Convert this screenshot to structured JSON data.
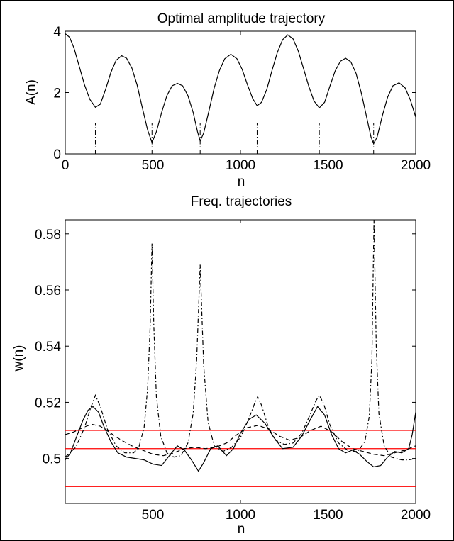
{
  "chart_data": [
    {
      "type": "line",
      "title": "Optimal  amplitude trajectory",
      "xlabel": "n",
      "ylabel": "A(n)",
      "xlim": [
        0,
        2000
      ],
      "ylim": [
        0,
        4
      ],
      "x_ticks": [
        "0",
        "500",
        "1000",
        "1500",
        "2000"
      ],
      "y_ticks": [
        "0",
        "2",
        "4"
      ],
      "series": [
        {
          "style": "solid",
          "color": "#000000",
          "points": [
            [
              0,
              3.92
            ],
            [
              25,
              3.8
            ],
            [
              50,
              3.45
            ],
            [
              80,
              2.85
            ],
            [
              110,
              2.25
            ],
            [
              140,
              1.78
            ],
            [
              172,
              1.52
            ],
            [
              200,
              1.62
            ],
            [
              230,
              2.1
            ],
            [
              260,
              2.65
            ],
            [
              290,
              3.05
            ],
            [
              322,
              3.2
            ],
            [
              350,
              3.12
            ],
            [
              380,
              2.8
            ],
            [
              410,
              2.25
            ],
            [
              440,
              1.5
            ],
            [
              470,
              0.78
            ],
            [
              495,
              0.37
            ],
            [
              520,
              0.72
            ],
            [
              550,
              1.35
            ],
            [
              580,
              1.9
            ],
            [
              610,
              2.22
            ],
            [
              640,
              2.3
            ],
            [
              670,
              2.22
            ],
            [
              700,
              1.9
            ],
            [
              730,
              1.35
            ],
            [
              755,
              0.72
            ],
            [
              770,
              0.42
            ],
            [
              790,
              0.68
            ],
            [
              820,
              1.4
            ],
            [
              850,
              2.15
            ],
            [
              880,
              2.72
            ],
            [
              910,
              3.1
            ],
            [
              945,
              3.25
            ],
            [
              980,
              3.1
            ],
            [
              1010,
              2.75
            ],
            [
              1040,
              2.25
            ],
            [
              1070,
              1.8
            ],
            [
              1095,
              1.57
            ],
            [
              1120,
              1.68
            ],
            [
              1150,
              2.1
            ],
            [
              1180,
              2.72
            ],
            [
              1210,
              3.3
            ],
            [
              1240,
              3.72
            ],
            [
              1270,
              3.88
            ],
            [
              1300,
              3.75
            ],
            [
              1330,
              3.35
            ],
            [
              1360,
              2.78
            ],
            [
              1390,
              2.2
            ],
            [
              1420,
              1.72
            ],
            [
              1450,
              1.5
            ],
            [
              1480,
              1.68
            ],
            [
              1510,
              2.2
            ],
            [
              1540,
              2.7
            ],
            [
              1570,
              3.02
            ],
            [
              1600,
              3.12
            ],
            [
              1630,
              3.0
            ],
            [
              1660,
              2.62
            ],
            [
              1690,
              1.98
            ],
            [
              1720,
              1.2
            ],
            [
              1745,
              0.55
            ],
            [
              1760,
              0.33
            ],
            [
              1780,
              0.55
            ],
            [
              1810,
              1.25
            ],
            [
              1840,
              1.85
            ],
            [
              1870,
              2.22
            ],
            [
              1905,
              2.32
            ],
            [
              1940,
              2.15
            ],
            [
              1970,
              1.75
            ],
            [
              2000,
              1.2
            ]
          ]
        }
      ],
      "markers": {
        "style": "dash-dot",
        "color": "#000000",
        "x": [
          172,
          495,
          770,
          1095,
          1450,
          1760
        ],
        "y_range": [
          0,
          1.0
        ]
      }
    },
    {
      "type": "line",
      "title": "Freq. trajectories",
      "xlabel": "n",
      "ylabel": "w(n)",
      "xlim": [
        0,
        2000
      ],
      "ylim": [
        0.484,
        0.585
      ],
      "x_ticks": [
        "500",
        "1000",
        "1500",
        "2000"
      ],
      "y_ticks": [
        "0.5",
        "0.52",
        "0.54",
        "0.56",
        "0.58"
      ],
      "horizontal_lines": {
        "color": "#ff0000",
        "y": [
          0.51,
          0.5035,
          0.49
        ]
      },
      "series": [
        {
          "style": "solid",
          "color": "#000000",
          "points": [
            [
              0,
              0.4995
            ],
            [
              30,
              0.502
            ],
            [
              60,
              0.507
            ],
            [
              100,
              0.5135
            ],
            [
              130,
              0.5172
            ],
            [
              158,
              0.5185
            ],
            [
              190,
              0.5165
            ],
            [
              220,
              0.5115
            ],
            [
              260,
              0.506
            ],
            [
              300,
              0.502
            ],
            [
              350,
              0.5005
            ],
            [
              400,
              0.5
            ],
            [
              450,
              0.4995
            ],
            [
              500,
              0.498
            ],
            [
              550,
              0.4975
            ],
            [
              600,
              0.5015
            ],
            [
              640,
              0.5045
            ],
            [
              680,
              0.503
            ],
            [
              720,
              0.4995
            ],
            [
              760,
              0.4955
            ],
            [
              790,
              0.4985
            ],
            [
              830,
              0.5035
            ],
            [
              870,
              0.5045
            ],
            [
              920,
              0.501
            ],
            [
              960,
              0.5035
            ],
            [
              1000,
              0.509
            ],
            [
              1050,
              0.514
            ],
            [
              1090,
              0.5155
            ],
            [
              1140,
              0.5125
            ],
            [
              1190,
              0.5075
            ],
            [
              1240,
              0.5035
            ],
            [
              1300,
              0.504
            ],
            [
              1350,
              0.508
            ],
            [
              1400,
              0.514
            ],
            [
              1440,
              0.5185
            ],
            [
              1480,
              0.5155
            ],
            [
              1520,
              0.5085
            ],
            [
              1560,
              0.5035
            ],
            [
              1600,
              0.502
            ],
            [
              1640,
              0.503
            ],
            [
              1680,
              0.5015
            ],
            [
              1720,
              0.499
            ],
            [
              1760,
              0.497
            ],
            [
              1800,
              0.4975
            ],
            [
              1840,
              0.5005
            ],
            [
              1880,
              0.5025
            ],
            [
              1920,
              0.502
            ],
            [
              1960,
              0.5035
            ],
            [
              1980,
              0.5085
            ],
            [
              2000,
              0.5165
            ]
          ]
        },
        {
          "style": "dashed",
          "color": "#000000",
          "points": [
            [
              0,
              0.5085
            ],
            [
              50,
              0.5095
            ],
            [
              100,
              0.511
            ],
            [
              150,
              0.5122
            ],
            [
              200,
              0.5115
            ],
            [
              260,
              0.509
            ],
            [
              320,
              0.5065
            ],
            [
              380,
              0.5045
            ],
            [
              440,
              0.503
            ],
            [
              500,
              0.5015
            ],
            [
              560,
              0.501
            ],
            [
              620,
              0.502
            ],
            [
              680,
              0.5035
            ],
            [
              740,
              0.504
            ],
            [
              800,
              0.5035
            ],
            [
              860,
              0.504
            ],
            [
              920,
              0.5055
            ],
            [
              980,
              0.5085
            ],
            [
              1040,
              0.511
            ],
            [
              1100,
              0.5118
            ],
            [
              1160,
              0.5105
            ],
            [
              1220,
              0.508
            ],
            [
              1280,
              0.5065
            ],
            [
              1340,
              0.5075
            ],
            [
              1400,
              0.51
            ],
            [
              1460,
              0.5115
            ],
            [
              1520,
              0.5095
            ],
            [
              1580,
              0.506
            ],
            [
              1640,
              0.5035
            ],
            [
              1700,
              0.5025
            ],
            [
              1760,
              0.5015
            ],
            [
              1820,
              0.501
            ],
            [
              1880,
              0.502
            ],
            [
              1940,
              0.503
            ],
            [
              2000,
              0.5045
            ]
          ]
        },
        {
          "style": "dash-dot",
          "color": "#000000",
          "points": [
            [
              0,
              0.5005
            ],
            [
              60,
              0.504
            ],
            [
              110,
              0.511
            ],
            [
              145,
              0.518
            ],
            [
              172,
              0.5225
            ],
            [
              200,
              0.5185
            ],
            [
              240,
              0.5105
            ],
            [
              290,
              0.5045
            ],
            [
              340,
              0.502
            ],
            [
              390,
              0.502
            ],
            [
              420,
              0.504
            ],
            [
              450,
              0.511
            ],
            [
              470,
              0.525
            ],
            [
              485,
              0.548
            ],
            [
              495,
              0.5765
            ],
            [
              505,
              0.548
            ],
            [
              520,
              0.522
            ],
            [
              545,
              0.508
            ],
            [
              580,
              0.502
            ],
            [
              620,
              0.5005
            ],
            [
              660,
              0.501
            ],
            [
              700,
              0.5055
            ],
            [
              730,
              0.516
            ],
            [
              750,
              0.535
            ],
            [
              770,
              0.569
            ],
            [
              790,
              0.533
            ],
            [
              815,
              0.513
            ],
            [
              850,
              0.5045
            ],
            [
              900,
              0.5025
            ],
            [
              950,
              0.504
            ],
            [
              1000,
              0.5075
            ],
            [
              1050,
              0.5145
            ],
            [
              1080,
              0.5195
            ],
            [
              1098,
              0.522
            ],
            [
              1120,
              0.519
            ],
            [
              1160,
              0.511
            ],
            [
              1200,
              0.5065
            ],
            [
              1250,
              0.505
            ],
            [
              1300,
              0.5055
            ],
            [
              1350,
              0.509
            ],
            [
              1400,
              0.516
            ],
            [
              1430,
              0.5205
            ],
            [
              1450,
              0.5225
            ],
            [
              1475,
              0.5195
            ],
            [
              1510,
              0.512
            ],
            [
              1560,
              0.5055
            ],
            [
              1620,
              0.5025
            ],
            [
              1670,
              0.5025
            ],
            [
              1710,
              0.506
            ],
            [
              1735,
              0.515
            ],
            [
              1750,
              0.535
            ],
            [
              1762,
              0.585
            ],
            [
              1775,
              0.54
            ],
            [
              1790,
              0.516
            ],
            [
              1820,
              0.5045
            ],
            [
              1860,
              0.5005
            ],
            [
              1920,
              0.4995
            ],
            [
              1960,
              0.4995
            ],
            [
              2000,
              0.5
            ]
          ]
        }
      ]
    }
  ]
}
